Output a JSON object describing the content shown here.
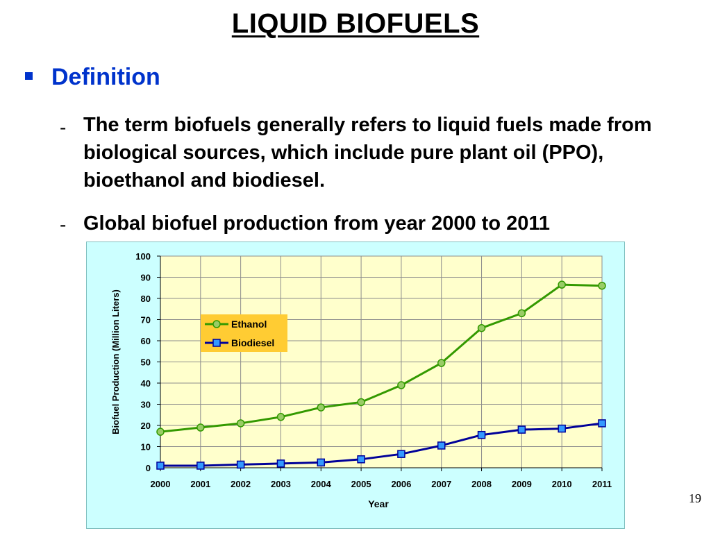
{
  "slide": {
    "title": "LIQUID BIOFUELS",
    "heading": "Definition",
    "points": [
      {
        "marker": "-",
        "text": "The term biofuels generally refers to liquid fuels made from biological sources, which include pure plant oil (PPO), bioethanol and biodiesel."
      },
      {
        "marker": "-",
        "text": "Global biofuel production from year 2000 to 2011"
      }
    ],
    "page_number": "19"
  },
  "colors": {
    "heading": "#0033cc",
    "chart_background": "#ccffff",
    "plot_background": "#ffffcc",
    "legend_background": "#ffcc33",
    "ethanol_line": "#339900",
    "ethanol_marker": "#99cc66",
    "biodiesel_line": "#000099",
    "biodiesel_marker": "#3399ff"
  },
  "chart_data": {
    "type": "line",
    "xlabel": "Year",
    "ylabel": "Biofuel Production (Million Liters)",
    "ylim": [
      0,
      100
    ],
    "yticks": [
      0,
      10,
      20,
      30,
      40,
      50,
      60,
      70,
      80,
      90,
      100
    ],
    "categories": [
      "2000",
      "2001",
      "2002",
      "2003",
      "2004",
      "2005",
      "2006",
      "2007",
      "2008",
      "2009",
      "2010",
      "2011"
    ],
    "grid": true,
    "legend_position": "upper-left",
    "series": [
      {
        "name": "Ethanol",
        "marker": "circle",
        "values": [
          17,
          19,
          21,
          24,
          28.5,
          31,
          39,
          49.5,
          66,
          73,
          86.5,
          86
        ]
      },
      {
        "name": "Biodiesel",
        "marker": "square",
        "values": [
          1,
          1,
          1.5,
          2,
          2.5,
          4,
          6.5,
          10.5,
          15.5,
          18,
          18.5,
          21
        ]
      }
    ]
  }
}
